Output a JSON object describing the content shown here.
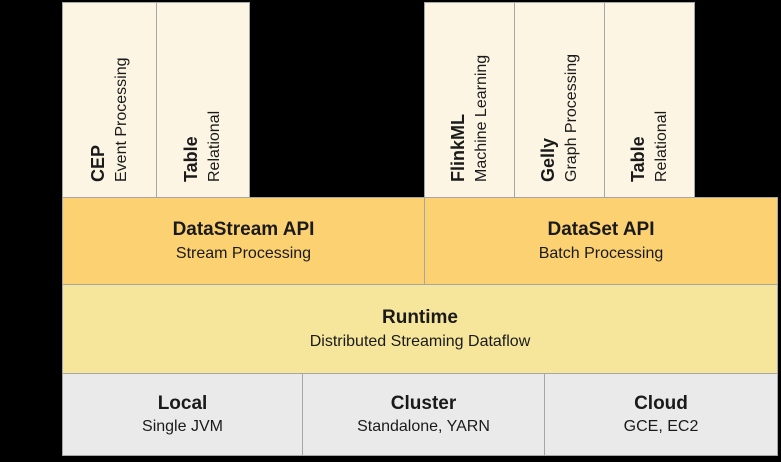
{
  "stack": {
    "libraries": {
      "left": [
        {
          "name": "CEP",
          "desc": "Event Processing"
        },
        {
          "name": "Table",
          "desc": "Relational"
        }
      ],
      "right": [
        {
          "name": "FlinkML",
          "desc": "Machine Learning"
        },
        {
          "name": "Gelly",
          "desc": "Graph Processing"
        },
        {
          "name": "Table",
          "desc": "Relational"
        }
      ]
    },
    "apis": [
      {
        "name": "DataStream API",
        "desc": "Stream Processing"
      },
      {
        "name": "DataSet API",
        "desc": "Batch Processing"
      }
    ],
    "runtime": {
      "name": "Runtime",
      "desc": "Distributed Streaming Dataflow"
    },
    "deployment": [
      {
        "name": "Local",
        "desc": "Single JVM"
      },
      {
        "name": "Cluster",
        "desc": "Standalone, YARN"
      },
      {
        "name": "Cloud",
        "desc": "GCE, EC2"
      }
    ]
  },
  "colors": {
    "background": "#000000",
    "libraries_bg": "#fcf5e3",
    "api_bg": "#fcd172",
    "runtime_bg": "#f6e69b",
    "deployment_bg": "#eaeaea",
    "border": "#a6a6a6",
    "text": "#1a1a1a"
  }
}
